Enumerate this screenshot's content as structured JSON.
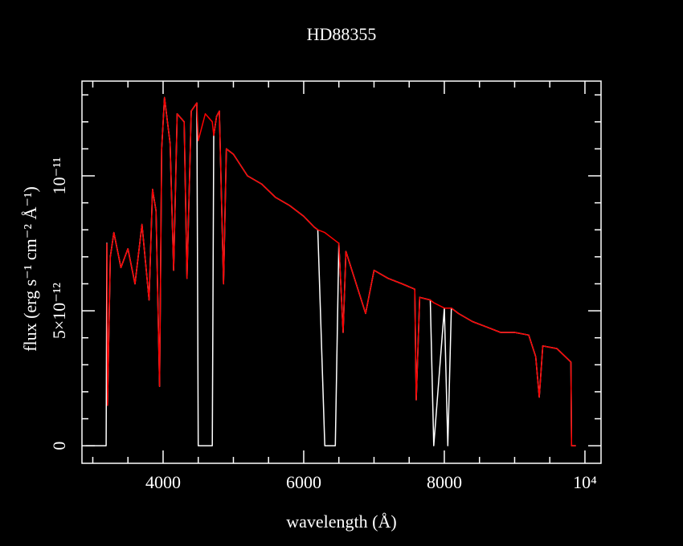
{
  "chart_data": {
    "type": "line",
    "title": "HD88355",
    "x_label": "wavelength (Å)",
    "y_label": "flux (erg s⁻¹ cm⁻² Å⁻¹)",
    "x": [
      2900,
      3190,
      3200,
      3210,
      3250,
      3300,
      3400,
      3500,
      3600,
      3700,
      3800,
      3850,
      3900,
      3950,
      3980,
      4020,
      4100,
      4150,
      4200,
      4300,
      4340,
      4400,
      4480,
      4500,
      4600,
      4700,
      4720,
      4760,
      4800,
      4860,
      4900,
      5000,
      5200,
      5400,
      5600,
      5800,
      6000,
      6150,
      6200,
      6300,
      6450,
      6500,
      6560,
      6600,
      6880,
      7000,
      7200,
      7400,
      7580,
      7600,
      7650,
      7800,
      7850,
      8000,
      8050,
      8100,
      8200,
      8400,
      8600,
      8800,
      9000,
      9200,
      9300,
      9350,
      9400,
      9600,
      9800,
      9810,
      9870
    ],
    "series": [
      {
        "color": "#ffffff",
        "values": [
          0,
          0,
          7.5e-12,
          1.5e-12,
          7e-12,
          7.9e-12,
          6.6e-12,
          7.3e-12,
          6e-12,
          8.2e-12,
          5.4e-12,
          9.5e-12,
          8.7e-12,
          2.2e-12,
          1.1e-11,
          1.29e-11,
          1.12e-11,
          6.5e-12,
          1.23e-11,
          1.2e-11,
          6.2e-12,
          1.24e-11,
          1.27e-11,
          0,
          0,
          0,
          1.15e-11,
          1.22e-11,
          1.24e-11,
          6e-12,
          1.1e-11,
          1.08e-11,
          1e-11,
          9.7e-12,
          9.2e-12,
          8.9e-12,
          8.5e-12,
          8.1e-12,
          8e-12,
          0,
          0,
          7.5e-12,
          4.2e-12,
          7.2e-12,
          4.9e-12,
          6.5e-12,
          6.2e-12,
          6e-12,
          5.8e-12,
          1.7e-12,
          5.5e-12,
          5.4e-12,
          0,
          5.1e-12,
          0,
          5.1e-12,
          4.9e-12,
          4.6e-12,
          4.4e-12,
          4.2e-12,
          4.2e-12,
          4.1e-12,
          3.3e-12,
          1.8e-12,
          3.7e-12,
          3.6e-12,
          3.1e-12,
          0,
          0
        ]
      },
      {
        "color": "#ff0000",
        "values": [
          null,
          null,
          7.5e-12,
          1.5e-12,
          7e-12,
          7.9e-12,
          6.6e-12,
          7.3e-12,
          6e-12,
          8.2e-12,
          5.4e-12,
          9.5e-12,
          8.7e-12,
          2.2e-12,
          1.1e-11,
          1.29e-11,
          1.12e-11,
          6.5e-12,
          1.23e-11,
          1.2e-11,
          6.2e-12,
          1.24e-11,
          1.27e-11,
          1.13e-11,
          1.23e-11,
          1.2e-11,
          1.15e-11,
          1.22e-11,
          1.24e-11,
          6e-12,
          1.1e-11,
          1.08e-11,
          1e-11,
          9.7e-12,
          9.2e-12,
          8.9e-12,
          8.5e-12,
          8.1e-12,
          8e-12,
          7.9e-12,
          7.6e-12,
          7.5e-12,
          4.2e-12,
          7.2e-12,
          4.9e-12,
          6.5e-12,
          6.2e-12,
          6e-12,
          5.8e-12,
          1.7e-12,
          5.5e-12,
          5.4e-12,
          5.3e-12,
          5.1e-12,
          5.1e-12,
          5.1e-12,
          4.9e-12,
          4.6e-12,
          4.4e-12,
          4.2e-12,
          4.2e-12,
          4.1e-12,
          3.3e-12,
          1.8e-12,
          3.7e-12,
          3.6e-12,
          3.1e-12,
          0,
          0
        ]
      }
    ],
    "xlim": [
      2846,
      10229
    ],
    "ylim": [
      -6.5e-13,
      1.351e-11
    ],
    "xticks": [
      4000,
      6000,
      8000,
      {
        "value": 10000,
        "label": "10⁴"
      }
    ],
    "yticks": [
      0,
      {
        "value": 5e-12,
        "label": "5×10⁻¹²"
      },
      {
        "value": 1e-11,
        "label": "10⁻¹¹"
      }
    ],
    "xminorticks": [
      3000,
      3500,
      4500,
      5000,
      5500,
      6500,
      7000,
      7500,
      8500,
      9000,
      9500
    ],
    "yminorticks": [
      1e-12,
      2e-12,
      3e-12,
      4e-12,
      6e-12,
      7e-12,
      8e-12,
      9e-12,
      1.1e-11,
      1.2e-11,
      1.3e-11
    ]
  }
}
